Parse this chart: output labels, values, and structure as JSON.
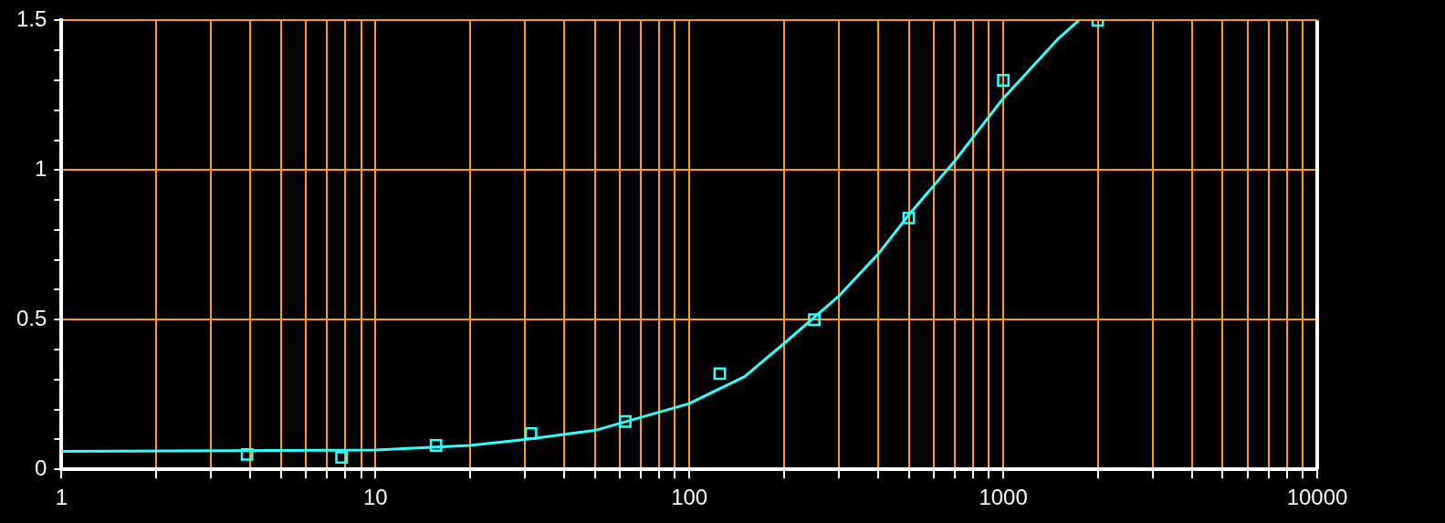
{
  "chart_data": {
    "type": "scatter",
    "log": "x",
    "grid": true,
    "legend": false,
    "marker": "square",
    "xlim": [
      1,
      10000
    ],
    "ylim": [
      0,
      1.5
    ],
    "xticks": [
      1,
      {
        "value": 2,
        "label": null
      },
      {
        "value": 3,
        "label": null
      },
      {
        "value": 4,
        "label": null
      },
      {
        "value": 5,
        "label": null
      },
      {
        "value": 6,
        "label": null
      },
      {
        "value": 7,
        "label": null
      },
      {
        "value": 8,
        "label": null
      },
      {
        "value": 9,
        "label": null
      },
      10,
      {
        "value": 20,
        "label": null
      },
      {
        "value": 30,
        "label": null
      },
      {
        "value": 40,
        "label": null
      },
      {
        "value": 50,
        "label": null
      },
      {
        "value": 60,
        "label": null
      },
      {
        "value": 70,
        "label": null
      },
      {
        "value": 80,
        "label": null
      },
      {
        "value": 90,
        "label": null
      },
      100,
      {
        "value": 200,
        "label": null
      },
      {
        "value": 300,
        "label": null
      },
      {
        "value": 400,
        "label": null
      },
      {
        "value": 500,
        "label": null
      },
      {
        "value": 600,
        "label": null
      },
      {
        "value": 700,
        "label": null
      },
      {
        "value": 800,
        "label": null
      },
      {
        "value": 900,
        "label": null
      },
      1000,
      {
        "value": 2000,
        "label": null
      },
      {
        "value": 3000,
        "label": null
      },
      {
        "value": 4000,
        "label": null
      },
      {
        "value": 5000,
        "label": null
      },
      {
        "value": 6000,
        "label": null
      },
      {
        "value": 7000,
        "label": null
      },
      {
        "value": 8000,
        "label": null
      },
      {
        "value": 9000,
        "label": null
      },
      10000
    ],
    "yticks": [
      0,
      {
        "value": 0.1,
        "label": null
      },
      {
        "value": 0.2,
        "label": null
      },
      {
        "value": 0.3,
        "label": null
      },
      {
        "value": 0.4,
        "label": null
      },
      0.5,
      {
        "value": 0.6,
        "label": null
      },
      {
        "value": 0.7,
        "label": null
      },
      {
        "value": 0.8,
        "label": null
      },
      {
        "value": 0.9,
        "label": null
      },
      1,
      {
        "value": 1.1,
        "label": null
      },
      {
        "value": 1.2,
        "label": null
      },
      {
        "value": 1.3,
        "label": null
      },
      {
        "value": 1.4,
        "label": null
      },
      1.5
    ],
    "series": [
      {
        "color": "#33ffff",
        "x": [
          3.9,
          7.8,
          15.6,
          31.3,
          62.5,
          125,
          250,
          500,
          1000,
          2000
        ],
        "values": [
          0.05,
          0.04,
          0.08,
          0.12,
          0.16,
          0.32,
          0.5,
          0.84,
          1.3,
          1.5
        ]
      },
      {
        "type": "line",
        "color": "#33ffff",
        "marker": "none",
        "x": [
          1,
          10,
          20,
          30,
          50,
          100,
          150,
          200,
          300,
          400,
          500,
          700,
          1000,
          1500,
          1740
        ],
        "values": [
          0.06,
          0.065,
          0.08,
          0.1,
          0.13,
          0.22,
          0.31,
          0.42,
          0.58,
          0.72,
          0.85,
          1.03,
          1.24,
          1.44,
          1.5
        ]
      }
    ]
  }
}
